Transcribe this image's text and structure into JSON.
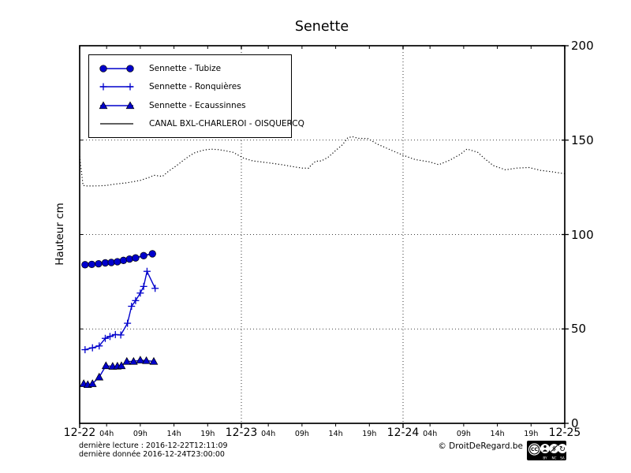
{
  "chart_data": {
    "type": "line",
    "title": "Senette",
    "ylabel": "Hauteur cm",
    "ylim": [
      0,
      200
    ],
    "xlim_hours": [
      0,
      72
    ],
    "x_start_date": "12-22",
    "grid": {
      "on": true,
      "style": "dotted",
      "y_values": [
        50,
        100,
        150
      ],
      "x_hours": [
        24,
        48
      ]
    },
    "y_ticks": [
      0,
      50,
      100,
      150,
      200
    ],
    "x_ticks": [
      {
        "hour": 0,
        "label": "12-22",
        "kind": "day"
      },
      {
        "hour": 4,
        "label": "04h",
        "kind": "hour"
      },
      {
        "hour": 9,
        "label": "09h",
        "kind": "hour"
      },
      {
        "hour": 14,
        "label": "14h",
        "kind": "hour"
      },
      {
        "hour": 19,
        "label": "19h",
        "kind": "hour"
      },
      {
        "hour": 24,
        "label": "12-23",
        "kind": "day"
      },
      {
        "hour": 28,
        "label": "04h",
        "kind": "hour"
      },
      {
        "hour": 33,
        "label": "09h",
        "kind": "hour"
      },
      {
        "hour": 38,
        "label": "14h",
        "kind": "hour"
      },
      {
        "hour": 43,
        "label": "19h",
        "kind": "hour"
      },
      {
        "hour": 48,
        "label": "12-24",
        "kind": "day"
      },
      {
        "hour": 52,
        "label": "04h",
        "kind": "hour"
      },
      {
        "hour": 57,
        "label": "09h",
        "kind": "hour"
      },
      {
        "hour": 62,
        "label": "14h",
        "kind": "hour"
      },
      {
        "hour": 67,
        "label": "19h",
        "kind": "hour"
      },
      {
        "hour": 72,
        "label": "12-25",
        "kind": "day"
      }
    ],
    "legend_position": "upper left",
    "series": [
      {
        "name": "Sennette - Tubize",
        "marker": "circle",
        "linestyle": "solid",
        "color": "#0000cc",
        "points": [
          [
            0.8,
            84
          ],
          [
            1.8,
            84.2
          ],
          [
            2.8,
            84.5
          ],
          [
            3.8,
            85
          ],
          [
            4.7,
            85.2
          ],
          [
            5.6,
            85.6
          ],
          [
            6.5,
            86.3
          ],
          [
            7.4,
            87
          ],
          [
            8.3,
            87.6
          ],
          [
            9.5,
            88.8
          ],
          [
            10.8,
            89.8
          ]
        ]
      },
      {
        "name": "Sennette - Ronquières",
        "marker": "plus",
        "linestyle": "solid",
        "color": "#0000cc",
        "points": [
          [
            0.8,
            39
          ],
          [
            1.9,
            40
          ],
          [
            2.9,
            41
          ],
          [
            3.8,
            45
          ],
          [
            4.5,
            46
          ],
          [
            5.3,
            47
          ],
          [
            6.1,
            46.8
          ],
          [
            7.1,
            53
          ],
          [
            7.7,
            62
          ],
          [
            8.3,
            65
          ],
          [
            9.0,
            69
          ],
          [
            9.5,
            72.5
          ],
          [
            10.0,
            80.5
          ],
          [
            11.2,
            71.5
          ]
        ]
      },
      {
        "name": "Sennette - Ecaussinnes",
        "marker": "triangle",
        "linestyle": "solid",
        "color": "#0000cc",
        "points": [
          [
            0.6,
            21
          ],
          [
            1.2,
            20.5
          ],
          [
            1.9,
            21
          ],
          [
            2.9,
            24.5
          ],
          [
            3.9,
            30.5
          ],
          [
            4.9,
            30.2
          ],
          [
            5.6,
            30.3
          ],
          [
            6.2,
            30.5
          ],
          [
            7.0,
            32.8
          ],
          [
            8.0,
            32.8
          ],
          [
            9.0,
            33.5
          ],
          [
            9.9,
            33.2
          ],
          [
            11.0,
            32.8
          ]
        ]
      },
      {
        "name": "CANAL BXL-CHARLEROI  - OISQUERCQ",
        "marker": "none",
        "linestyle": "dotted",
        "color": "#000000",
        "points": [
          [
            0,
            141.5
          ],
          [
            0.3,
            132
          ],
          [
            0.5,
            126
          ],
          [
            1,
            125.7
          ],
          [
            2,
            125.7
          ],
          [
            3,
            125.8
          ],
          [
            4,
            126
          ],
          [
            5,
            126.6
          ],
          [
            6,
            127
          ],
          [
            7,
            127.4
          ],
          [
            8,
            128
          ],
          [
            9,
            128.7
          ],
          [
            10.5,
            130.5
          ],
          [
            11,
            131.4
          ],
          [
            11.8,
            131
          ],
          [
            12.3,
            130.8
          ],
          [
            13,
            133
          ],
          [
            14.3,
            136.3
          ],
          [
            15.8,
            140.4
          ],
          [
            17,
            143.2
          ],
          [
            18.5,
            144.8
          ],
          [
            19.5,
            145.2
          ],
          [
            20.5,
            145
          ],
          [
            21.3,
            144.6
          ],
          [
            22.8,
            143.5
          ],
          [
            24.3,
            140.5
          ],
          [
            25.7,
            139
          ],
          [
            28,
            138
          ],
          [
            30,
            137
          ],
          [
            31.6,
            136
          ],
          [
            33,
            135.2
          ],
          [
            34,
            135.1
          ],
          [
            34.3,
            136.5
          ],
          [
            35,
            138.8
          ],
          [
            35.9,
            139
          ],
          [
            36.9,
            141
          ],
          [
            38,
            144.5
          ],
          [
            39,
            147.5
          ],
          [
            39.8,
            151.3
          ],
          [
            40.5,
            151.8
          ],
          [
            41.3,
            151
          ],
          [
            42.8,
            150.8
          ],
          [
            44.1,
            148
          ],
          [
            45.7,
            145.5
          ],
          [
            48,
            142
          ],
          [
            49.8,
            139.7
          ],
          [
            51.9,
            138.5
          ],
          [
            53.3,
            137
          ],
          [
            55,
            139.5
          ],
          [
            56.5,
            142.5
          ],
          [
            57.5,
            145.3
          ],
          [
            59.1,
            143.5
          ],
          [
            60,
            140.5
          ],
          [
            61.4,
            136.5
          ],
          [
            63.2,
            134.3
          ],
          [
            64.9,
            135.2
          ],
          [
            66.7,
            135.5
          ],
          [
            68.4,
            134
          ],
          [
            70.2,
            133.2
          ],
          [
            72,
            132.2
          ]
        ]
      }
    ]
  },
  "footer": {
    "line1": "dernière lecture : 2016-12-22T12:11:09",
    "line2": "dernière donnée  2016-12-24T23:00:00",
    "copyright": "© DroitDeRegard.be",
    "license_parts": [
      "BY",
      "NC",
      "SA"
    ]
  }
}
